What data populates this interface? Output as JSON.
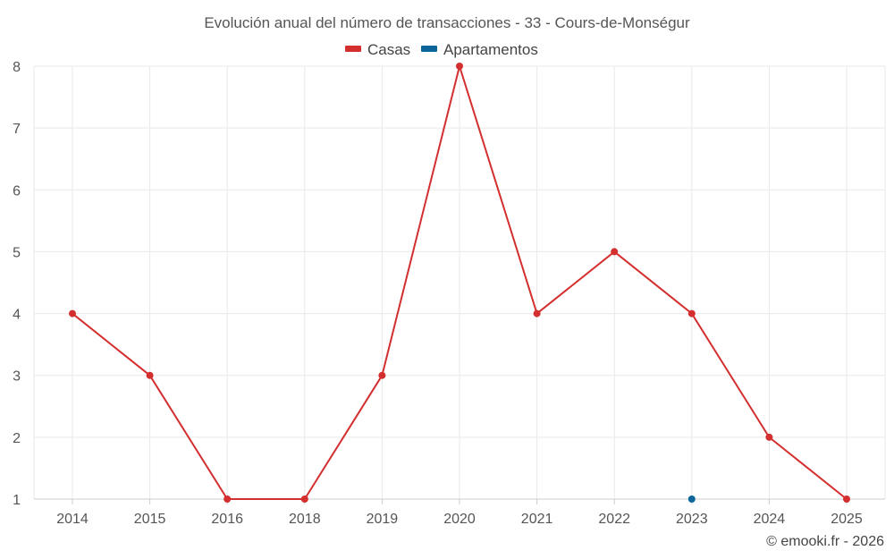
{
  "chart_data": {
    "type": "line",
    "title": "Evolución anual del número de transacciones - 33 - Cours-de-Monségur",
    "categories": [
      "2014",
      "2015",
      "2016",
      "2018",
      "2019",
      "2020",
      "2021",
      "2022",
      "2023",
      "2024",
      "2025"
    ],
    "y_ticks": [
      "1",
      "2",
      "3",
      "4",
      "5",
      "6",
      "7",
      "8"
    ],
    "ylim": [
      1,
      8
    ],
    "grid": true,
    "legend_position": "top-center",
    "series": [
      {
        "name": "Casas",
        "color": "#d32f2f",
        "values": [
          4,
          3,
          1,
          1,
          3,
          8,
          4,
          5,
          4,
          2,
          1
        ]
      },
      {
        "name": "Apartamentos",
        "color": "#0d6699",
        "values": [
          null,
          null,
          null,
          null,
          null,
          null,
          null,
          null,
          1,
          null,
          null
        ]
      }
    ],
    "credit": "© emooki.fr - 2026"
  }
}
